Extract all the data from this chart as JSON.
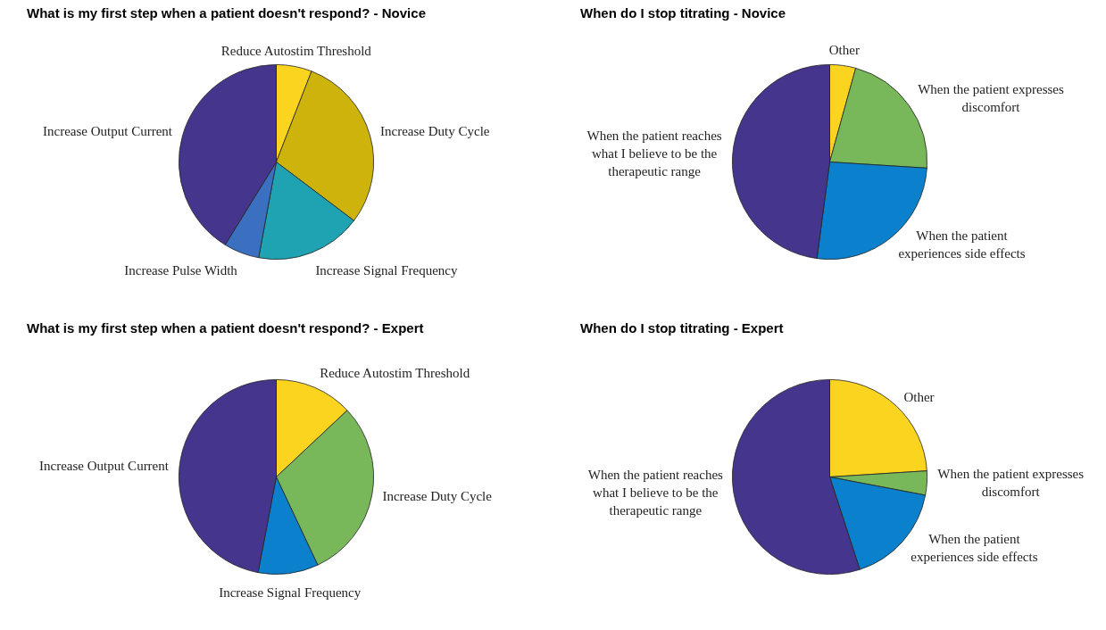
{
  "chart_data": [
    {
      "type": "pie",
      "title": "What is my first step when a patient doesn't respond? - Novice",
      "categories": [
        "Reduce Autostim Threshold",
        "Increase Duty Cycle",
        "Increase Signal Frequency",
        "Increase Pulse Width",
        "Increase Output Current"
      ],
      "values": [
        5.9,
        29.4,
        17.6,
        5.9,
        41.2
      ],
      "colors": [
        "#fad41e",
        "#cdb30c",
        "#1fa3b3",
        "#3b6fc0",
        "#46358d"
      ],
      "legend": false
    },
    {
      "type": "pie",
      "title": "When do I stop titrating - Novice",
      "categories": [
        "Other",
        "When the patient expresses discomfort",
        "When the patient experiences side effects",
        "When the patient reaches what I believe to be the therapeutic range"
      ],
      "values": [
        4.3,
        21.7,
        26.1,
        47.9
      ],
      "colors": [
        "#fad41e",
        "#78b85a",
        "#0b80cc",
        "#46358d"
      ],
      "legend": false
    },
    {
      "type": "pie",
      "title": "What is my first step when a patient doesn't respond? - Expert",
      "categories": [
        "Reduce Autostim Threshold",
        "Increase Duty Cycle",
        "Increase Signal Frequency",
        "Increase Output Current"
      ],
      "values": [
        13,
        30,
        10,
        47
      ],
      "colors": [
        "#fad41e",
        "#78b85a",
        "#0b80cc",
        "#46358d"
      ],
      "legend": false
    },
    {
      "type": "pie",
      "title": "When do I stop titrating - Expert",
      "categories": [
        "Other",
        "When the patient expresses discomfort",
        "When the patient experiences side effects",
        "When the patient reaches what I believe to be the therapeutic range"
      ],
      "values": [
        24,
        4,
        17,
        55
      ],
      "colors": [
        "#fad41e",
        "#78b85a",
        "#0b80cc",
        "#46358d"
      ],
      "legend": false
    }
  ]
}
